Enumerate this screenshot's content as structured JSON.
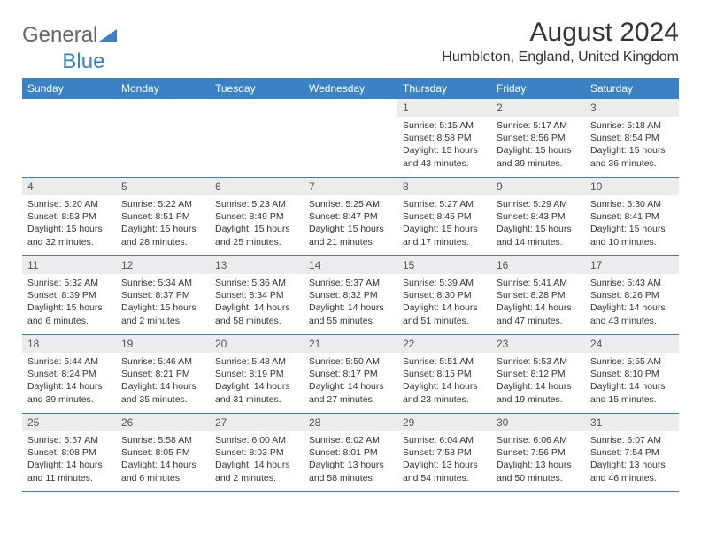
{
  "brand": {
    "part1": "General",
    "part2": "Blue"
  },
  "title": "August 2024",
  "location": "Humbleton, England, United Kingdom",
  "colors": {
    "header_bg": "#3b82c4",
    "header_text": "#ffffff",
    "daynum_bg": "#ececec",
    "rule": "#3b7fc4",
    "logo_accent": "#3b7fc4"
  },
  "day_headers": [
    "Sunday",
    "Monday",
    "Tuesday",
    "Wednesday",
    "Thursday",
    "Friday",
    "Saturday"
  ],
  "weeks": [
    [
      null,
      null,
      null,
      null,
      {
        "n": "1",
        "sunrise": "5:15 AM",
        "sunset": "8:58 PM",
        "daylight": "15 hours and 43 minutes."
      },
      {
        "n": "2",
        "sunrise": "5:17 AM",
        "sunset": "8:56 PM",
        "daylight": "15 hours and 39 minutes."
      },
      {
        "n": "3",
        "sunrise": "5:18 AM",
        "sunset": "8:54 PM",
        "daylight": "15 hours and 36 minutes."
      }
    ],
    [
      {
        "n": "4",
        "sunrise": "5:20 AM",
        "sunset": "8:53 PM",
        "daylight": "15 hours and 32 minutes."
      },
      {
        "n": "5",
        "sunrise": "5:22 AM",
        "sunset": "8:51 PM",
        "daylight": "15 hours and 28 minutes."
      },
      {
        "n": "6",
        "sunrise": "5:23 AM",
        "sunset": "8:49 PM",
        "daylight": "15 hours and 25 minutes."
      },
      {
        "n": "7",
        "sunrise": "5:25 AM",
        "sunset": "8:47 PM",
        "daylight": "15 hours and 21 minutes."
      },
      {
        "n": "8",
        "sunrise": "5:27 AM",
        "sunset": "8:45 PM",
        "daylight": "15 hours and 17 minutes."
      },
      {
        "n": "9",
        "sunrise": "5:29 AM",
        "sunset": "8:43 PM",
        "daylight": "15 hours and 14 minutes."
      },
      {
        "n": "10",
        "sunrise": "5:30 AM",
        "sunset": "8:41 PM",
        "daylight": "15 hours and 10 minutes."
      }
    ],
    [
      {
        "n": "11",
        "sunrise": "5:32 AM",
        "sunset": "8:39 PM",
        "daylight": "15 hours and 6 minutes."
      },
      {
        "n": "12",
        "sunrise": "5:34 AM",
        "sunset": "8:37 PM",
        "daylight": "15 hours and 2 minutes."
      },
      {
        "n": "13",
        "sunrise": "5:36 AM",
        "sunset": "8:34 PM",
        "daylight": "14 hours and 58 minutes."
      },
      {
        "n": "14",
        "sunrise": "5:37 AM",
        "sunset": "8:32 PM",
        "daylight": "14 hours and 55 minutes."
      },
      {
        "n": "15",
        "sunrise": "5:39 AM",
        "sunset": "8:30 PM",
        "daylight": "14 hours and 51 minutes."
      },
      {
        "n": "16",
        "sunrise": "5:41 AM",
        "sunset": "8:28 PM",
        "daylight": "14 hours and 47 minutes."
      },
      {
        "n": "17",
        "sunrise": "5:43 AM",
        "sunset": "8:26 PM",
        "daylight": "14 hours and 43 minutes."
      }
    ],
    [
      {
        "n": "18",
        "sunrise": "5:44 AM",
        "sunset": "8:24 PM",
        "daylight": "14 hours and 39 minutes."
      },
      {
        "n": "19",
        "sunrise": "5:46 AM",
        "sunset": "8:21 PM",
        "daylight": "14 hours and 35 minutes."
      },
      {
        "n": "20",
        "sunrise": "5:48 AM",
        "sunset": "8:19 PM",
        "daylight": "14 hours and 31 minutes."
      },
      {
        "n": "21",
        "sunrise": "5:50 AM",
        "sunset": "8:17 PM",
        "daylight": "14 hours and 27 minutes."
      },
      {
        "n": "22",
        "sunrise": "5:51 AM",
        "sunset": "8:15 PM",
        "daylight": "14 hours and 23 minutes."
      },
      {
        "n": "23",
        "sunrise": "5:53 AM",
        "sunset": "8:12 PM",
        "daylight": "14 hours and 19 minutes."
      },
      {
        "n": "24",
        "sunrise": "5:55 AM",
        "sunset": "8:10 PM",
        "daylight": "14 hours and 15 minutes."
      }
    ],
    [
      {
        "n": "25",
        "sunrise": "5:57 AM",
        "sunset": "8:08 PM",
        "daylight": "14 hours and 11 minutes."
      },
      {
        "n": "26",
        "sunrise": "5:58 AM",
        "sunset": "8:05 PM",
        "daylight": "14 hours and 6 minutes."
      },
      {
        "n": "27",
        "sunrise": "6:00 AM",
        "sunset": "8:03 PM",
        "daylight": "14 hours and 2 minutes."
      },
      {
        "n": "28",
        "sunrise": "6:02 AM",
        "sunset": "8:01 PM",
        "daylight": "13 hours and 58 minutes."
      },
      {
        "n": "29",
        "sunrise": "6:04 AM",
        "sunset": "7:58 PM",
        "daylight": "13 hours and 54 minutes."
      },
      {
        "n": "30",
        "sunrise": "6:06 AM",
        "sunset": "7:56 PM",
        "daylight": "13 hours and 50 minutes."
      },
      {
        "n": "31",
        "sunrise": "6:07 AM",
        "sunset": "7:54 PM",
        "daylight": "13 hours and 46 minutes."
      }
    ]
  ],
  "labels": {
    "sunrise": "Sunrise:",
    "sunset": "Sunset:",
    "daylight": "Daylight:"
  }
}
